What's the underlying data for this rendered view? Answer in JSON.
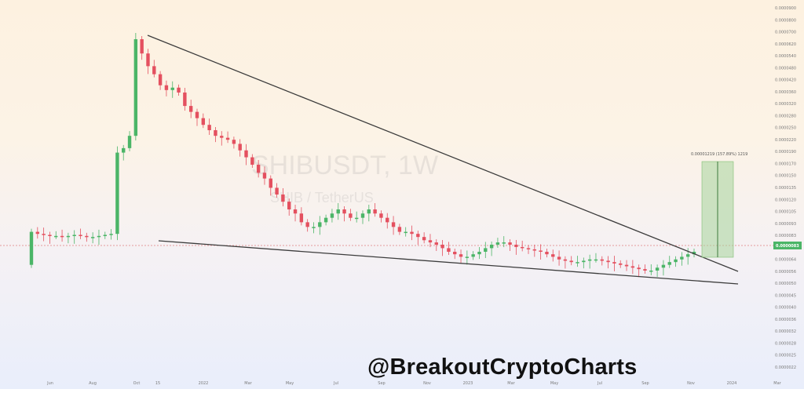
{
  "chart_data": {
    "type": "candlestick",
    "symbol": "SHIBUSDT, 1W",
    "pair_label": "SHIB / TetherUS",
    "colors": {
      "up": "#4bb567",
      "down": "#e4505f",
      "trendline": "#3c3c3c",
      "target_box": "#a6d49a",
      "price_line": "#e08080"
    },
    "x_tick_labels": [
      "Jun",
      "Aug",
      "Oct",
      "15",
      "2022",
      "Mar",
      "May",
      "Jul",
      "Sep",
      "Nov",
      "2023",
      "Mar",
      "May",
      "Jul",
      "Sep",
      "Nov",
      "2024",
      "Mar"
    ],
    "y_tick_labels": [
      "0.0000900",
      "0.0000800",
      "0.0000700",
      "0.0000620",
      "0.0000540",
      "0.0000480",
      "0.0000420",
      "0.0000360",
      "0.0000320",
      "0.0000280",
      "0.0000250",
      "0.0000220",
      "0.0000190",
      "0.0000170",
      "0.0000150",
      "0.0000135",
      "0.0000120",
      "0.0000105",
      "0.0000093",
      "0.0000083",
      "0.0000072",
      "0.0000064",
      "0.0000056",
      "0.0000050",
      "0.0000045",
      "0.0000040",
      "0.0000036",
      "0.0000032",
      "0.0000028",
      "0.0000025",
      "0.0000022"
    ],
    "current_price_label": "0.0000083",
    "target_annotation": "0.00001219 (157.89%) 1219",
    "candles_weekly_close": [
      1.0,
      0.98,
      0.97,
      0.96,
      0.96,
      0.95,
      0.96,
      0.97,
      0.96,
      0.95,
      0.95,
      0.96,
      0.97,
      0.98,
      2.2,
      2.3,
      2.6,
      6.8,
      5.9,
      5.2,
      4.8,
      4.3,
      4.1,
      4.2,
      4.0,
      3.5,
      3.3,
      3.1,
      2.9,
      2.75,
      2.6,
      2.55,
      2.5,
      2.4,
      2.25,
      2.1,
      1.95,
      1.8,
      1.7,
      1.55,
      1.45,
      1.35,
      1.25,
      1.2,
      1.1,
      1.05,
      1.05,
      1.1,
      1.15,
      1.2,
      1.25,
      1.2,
      1.15,
      1.15,
      1.2,
      1.25,
      1.2,
      1.15,
      1.1,
      1.05,
      1.0,
      1.0,
      0.98,
      0.95,
      0.92,
      0.9,
      0.88,
      0.85,
      0.82,
      0.8,
      0.78,
      0.78,
      0.8,
      0.82,
      0.85,
      0.88,
      0.9,
      0.9,
      0.88,
      0.86,
      0.85,
      0.84,
      0.83,
      0.82,
      0.8,
      0.78,
      0.76,
      0.75,
      0.74,
      0.74,
      0.75,
      0.76,
      0.76,
      0.75,
      0.74,
      0.73,
      0.72,
      0.71,
      0.7,
      0.69,
      0.68,
      0.68,
      0.7,
      0.72,
      0.74,
      0.76,
      0.78,
      0.8,
      0.82
    ]
  },
  "watermark": {
    "symbol": "SHIBUSDT, 1W",
    "pair": "SHIB / TetherUS"
  },
  "brand": {
    "handle": "@BreakoutCryptoCharts"
  }
}
